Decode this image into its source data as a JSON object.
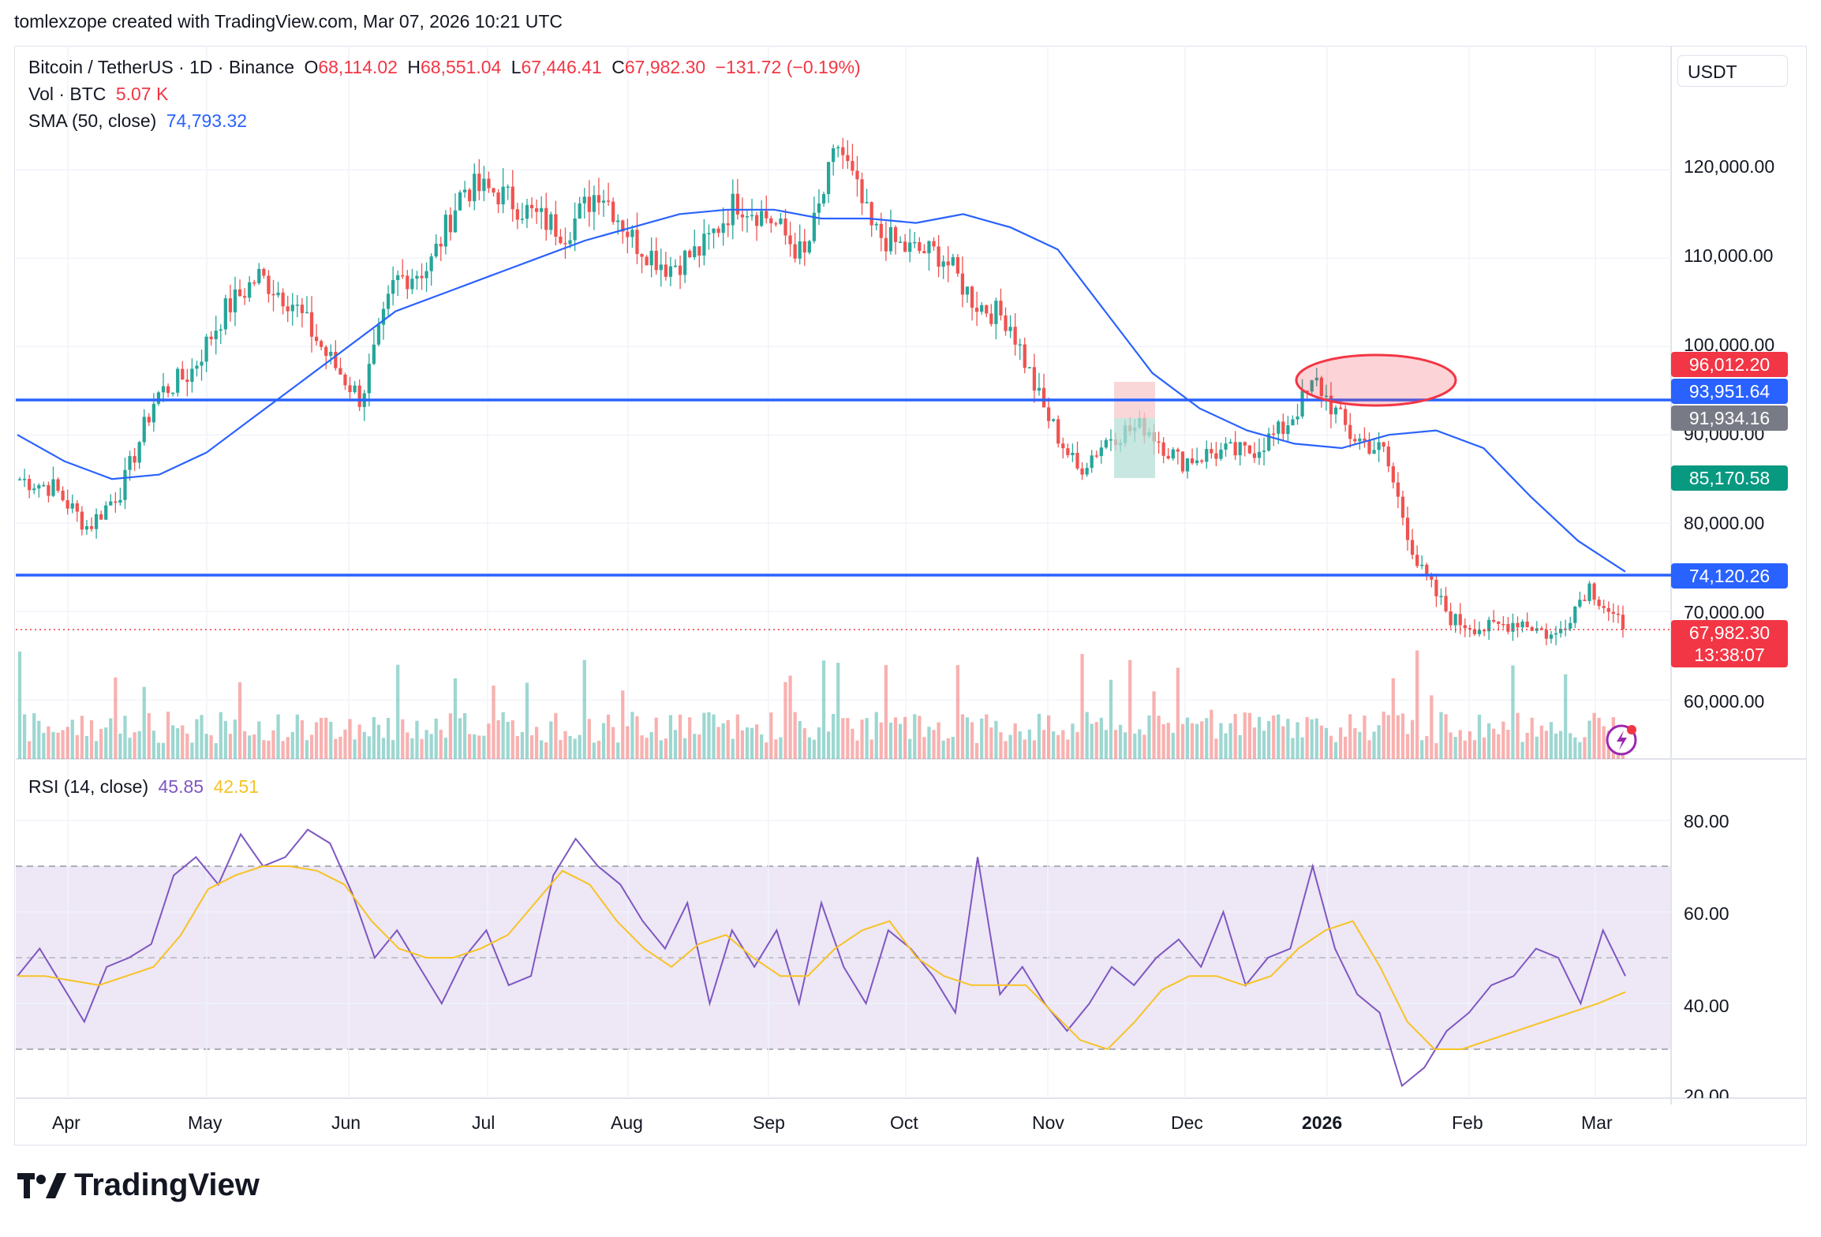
{
  "header": {
    "text": "tomlexzope created with TradingView.com, Mar 07, 2026 10:21 UTC"
  },
  "legend": {
    "symbol": "Bitcoin / TetherUS · 1D · Binance",
    "o_label": "O",
    "o_value": "68,114.02",
    "h_label": "H",
    "h_value": "68,551.04",
    "l_label": "L",
    "l_value": "67,446.41",
    "c_label": "C",
    "c_value": "67,982.30",
    "change": "−131.72 (−0.19%)",
    "vol_label": "Vol · BTC",
    "vol_value": "5.07 K",
    "sma_label": "SMA (50, close)",
    "sma_value": "74,793.32",
    "rsi_label": "RSI (14, close)",
    "rsi_value": "45.85",
    "rsi_ma_value": "42.51"
  },
  "price_axis": {
    "unit": "USDT",
    "ticks": [
      "120,000.00",
      "110,000.00",
      "100,000.00",
      "90,000.00",
      "80,000.00",
      "70,000.00",
      "60,000.00"
    ]
  },
  "rsi_axis": {
    "ticks": [
      "80.00",
      "60.00",
      "40.00",
      "20.00"
    ]
  },
  "time_axis": {
    "ticks": [
      "Apr",
      "May",
      "Jun",
      "Jul",
      "Aug",
      "Sep",
      "Oct",
      "Nov",
      "Dec",
      "2026",
      "Feb",
      "Mar"
    ]
  },
  "badges": {
    "b96012": "96,012.20",
    "b93951": "93,951.64",
    "b91934": "91,934.16",
    "b85170": "85,170.58",
    "b74120": "74,120.26",
    "b67982": "67,982.30",
    "countdown": "13:38:07"
  },
  "brand": {
    "name": "TradingView"
  },
  "colors": {
    "up": "#26a69a",
    "down": "#ef5350",
    "sma": "#2962ff",
    "hline": "#2962ff",
    "rsi": "#7e57c2",
    "rsi_ma": "#f7c325",
    "band": "#ede7f6",
    "highlight": "#f23645"
  },
  "chart_data": [
    {
      "type": "candlestick",
      "title": "Bitcoin / TetherUS · 1D · Binance",
      "x": [
        "Apr",
        "May",
        "Jun",
        "Jul",
        "Aug",
        "Sep",
        "Oct",
        "Nov",
        "Dec",
        "2026",
        "Feb",
        "Mar"
      ],
      "close_path": [
        85000,
        84000,
        79500,
        84000,
        94500,
        97000,
        104000,
        108000,
        105000,
        99000,
        94000,
        107500,
        109000,
        118000,
        117500,
        115000,
        113000,
        118000,
        112000,
        109000,
        111000,
        116500,
        114500,
        110000,
        123000,
        113000,
        111000,
        110500,
        105000,
        103000,
        93000,
        86000,
        90000,
        91000,
        87000,
        88000,
        88000,
        90500,
        96000,
        90000,
        88000,
        75000,
        69000,
        68000,
        69000,
        67000,
        73000,
        67982.3
      ],
      "ylim": [
        52000,
        128000
      ],
      "horizontal_lines": [
        93951.64,
        74120.26
      ],
      "sma_50": [
        90000,
        87000,
        85000,
        85500,
        88000,
        92000,
        96000,
        100000,
        104000,
        106000,
        108000,
        110000,
        112000,
        113500,
        115000,
        115500,
        115500,
        114500,
        114500,
        114000,
        115000,
        113500,
        111000,
        104000,
        97000,
        93000,
        90500,
        89000,
        88500,
        90000,
        90500,
        88500,
        83000,
        78000,
        74500
      ],
      "last_price": 67982.3
    },
    {
      "type": "bar",
      "title": "Vol · BTC",
      "last_value": "5.07 K"
    },
    {
      "type": "line",
      "title": "RSI (14, close)",
      "ylim": [
        20,
        90
      ],
      "bands": [
        30,
        50,
        70
      ],
      "rsi": [
        46,
        52,
        44,
        36,
        48,
        50,
        53,
        68,
        72,
        66,
        77,
        70,
        72,
        78,
        75,
        64,
        50,
        56,
        48,
        40,
        50,
        56,
        44,
        46,
        68,
        76,
        70,
        66,
        58,
        52,
        62,
        40,
        56,
        48,
        56,
        40,
        62,
        48,
        40,
        56,
        52,
        46,
        38,
        72,
        42,
        48,
        40,
        34,
        40,
        48,
        44,
        50,
        54,
        48,
        60,
        44,
        50,
        52,
        70,
        52,
        42,
        38,
        22,
        26,
        34,
        38,
        44,
        46,
        52,
        50,
        40,
        56,
        46
      ],
      "rsi_ma": [
        46,
        46,
        45,
        44,
        46,
        48,
        55,
        65,
        68,
        70,
        70,
        69,
        66,
        58,
        52,
        50,
        50,
        52,
        55,
        62,
        69,
        66,
        58,
        52,
        48,
        53,
        55,
        50,
        46,
        46,
        52,
        56,
        58,
        50,
        46,
        44,
        44,
        44,
        38,
        32,
        30,
        36,
        43,
        46,
        46,
        44,
        46,
        52,
        56,
        58,
        48,
        36,
        30,
        30,
        32,
        34,
        36,
        38,
        40,
        42.51
      ]
    }
  ]
}
